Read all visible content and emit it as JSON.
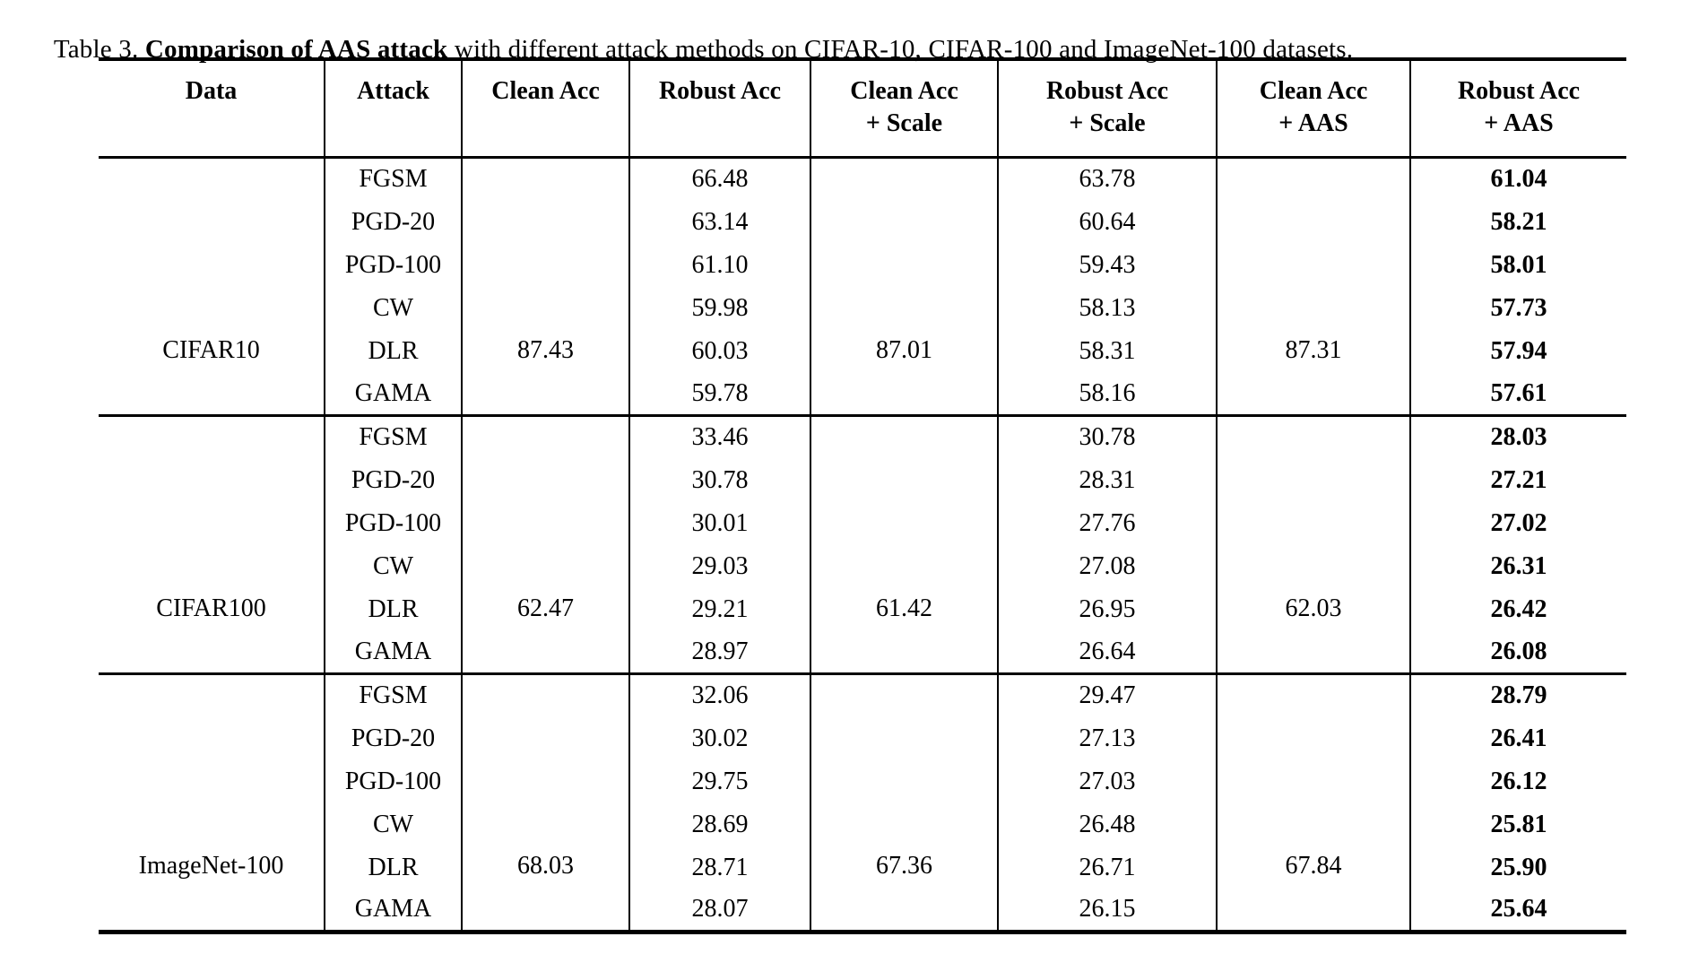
{
  "title": {
    "prefix": "Table 3. ",
    "bold": "Comparison of AAS attack",
    "rest": " with different attack methods on CIFAR-10, CIFAR-100 and ImageNet-100 datasets."
  },
  "table": {
    "columns": [
      {
        "label": "Data",
        "sub": ""
      },
      {
        "label": "Attack",
        "sub": ""
      },
      {
        "label": "Clean Acc",
        "sub": ""
      },
      {
        "label": "Robust Acc",
        "sub": ""
      },
      {
        "label": "Clean Acc",
        "sub": "+ Scale"
      },
      {
        "label": "Robust Acc",
        "sub": "+ Scale"
      },
      {
        "label": "Clean Acc",
        "sub": "+ AAS"
      },
      {
        "label": "Robust Acc",
        "sub": "+ AAS"
      }
    ],
    "sections": [
      {
        "dataset": "CIFAR10",
        "clean_acc": "87.43",
        "clean_acc_scale": "87.01",
        "clean_acc_aas": "87.31",
        "rows": [
          {
            "attack": "FGSM",
            "robust_acc": "66.48",
            "robust_acc_scale": "63.78",
            "robust_acc_aas": "61.04"
          },
          {
            "attack": "PGD-20",
            "robust_acc": "63.14",
            "robust_acc_scale": "60.64",
            "robust_acc_aas": "58.21"
          },
          {
            "attack": "PGD-100",
            "robust_acc": "61.10",
            "robust_acc_scale": "59.43",
            "robust_acc_aas": "58.01"
          },
          {
            "attack": "CW",
            "robust_acc": "59.98",
            "robust_acc_scale": "58.13",
            "robust_acc_aas": "57.73"
          },
          {
            "attack": "DLR",
            "robust_acc": "60.03",
            "robust_acc_scale": "58.31",
            "robust_acc_aas": "57.94"
          },
          {
            "attack": "GAMA",
            "robust_acc": "59.78",
            "robust_acc_scale": "58.16",
            "robust_acc_aas": "57.61"
          }
        ]
      },
      {
        "dataset": "CIFAR100",
        "clean_acc": "62.47",
        "clean_acc_scale": "61.42",
        "clean_acc_aas": "62.03",
        "rows": [
          {
            "attack": "FGSM",
            "robust_acc": "33.46",
            "robust_acc_scale": "30.78",
            "robust_acc_aas": "28.03"
          },
          {
            "attack": "PGD-20",
            "robust_acc": "30.78",
            "robust_acc_scale": "28.31",
            "robust_acc_aas": "27.21"
          },
          {
            "attack": "PGD-100",
            "robust_acc": "30.01",
            "robust_acc_scale": "27.76",
            "robust_acc_aas": "27.02"
          },
          {
            "attack": "CW",
            "robust_acc": "29.03",
            "robust_acc_scale": "27.08",
            "robust_acc_aas": "26.31"
          },
          {
            "attack": "DLR",
            "robust_acc": "29.21",
            "robust_acc_scale": "26.95",
            "robust_acc_aas": "26.42"
          },
          {
            "attack": "GAMA",
            "robust_acc": "28.97",
            "robust_acc_scale": "26.64",
            "robust_acc_aas": "26.08"
          }
        ]
      },
      {
        "dataset": "ImageNet-100",
        "clean_acc": "68.03",
        "clean_acc_scale": "67.36",
        "clean_acc_aas": "67.84",
        "rows": [
          {
            "attack": "FGSM",
            "robust_acc": "32.06",
            "robust_acc_scale": "29.47",
            "robust_acc_aas": "28.79"
          },
          {
            "attack": "PGD-20",
            "robust_acc": "30.02",
            "robust_acc_scale": "27.13",
            "robust_acc_aas": "26.41"
          },
          {
            "attack": "PGD-100",
            "robust_acc": "29.75",
            "robust_acc_scale": "27.03",
            "robust_acc_aas": "26.12"
          },
          {
            "attack": "CW",
            "robust_acc": "28.69",
            "robust_acc_scale": "26.48",
            "robust_acc_aas": "25.81"
          },
          {
            "attack": "DLR",
            "robust_acc": "28.71",
            "robust_acc_scale": "26.71",
            "robust_acc_aas": "25.90"
          },
          {
            "attack": "GAMA",
            "robust_acc": "28.07",
            "robust_acc_scale": "26.15",
            "robust_acc_aas": "25.64"
          }
        ]
      }
    ]
  }
}
